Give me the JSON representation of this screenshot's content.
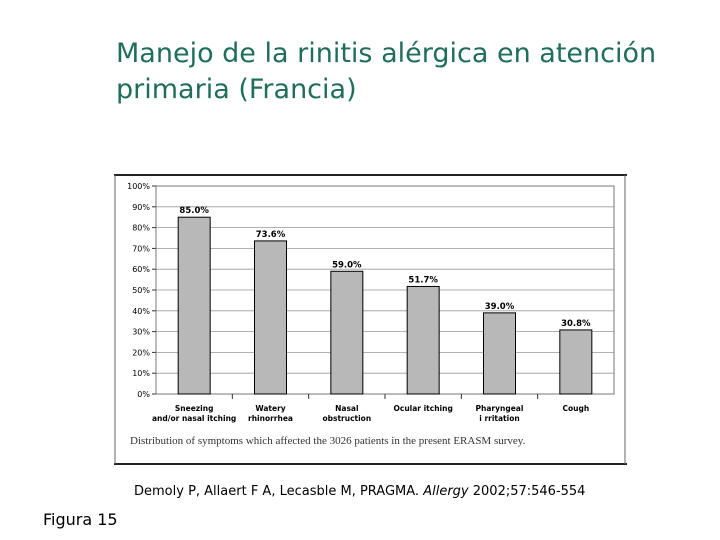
{
  "slide": {
    "title_line1": "Manejo de la rinitis alérgica en atención",
    "title_line2": "primaria (Francia)",
    "figure_label": "Figura 15"
  },
  "citation": {
    "authors": "Demoly P, Allaert F A, Lecasble M, PRAGMA.",
    "journal": "Allergy",
    "details": "2002;57:546-554"
  },
  "colors": {
    "title": "#1f6e5a",
    "bar_fill": "#b8b8b8",
    "bar_stroke": "#000000"
  },
  "chart_data": {
    "type": "bar",
    "categories": [
      [
        "Sneezing",
        "and/or nasal itching"
      ],
      [
        "Watery",
        "rhinorrhea"
      ],
      [
        "Nasal",
        "obstruction"
      ],
      [
        "Ocular itching"
      ],
      [
        "Pharyngeal",
        "i rritation"
      ],
      [
        "Cough"
      ]
    ],
    "values": [
      85.0,
      73.6,
      59.0,
      51.7,
      39.0,
      30.8
    ],
    "data_labels": [
      "85.0%",
      "73.6%",
      "59.0%",
      "51.7%",
      "39.0%",
      "30.8%"
    ],
    "yticks": [
      "0%",
      "10%",
      "20%",
      "30%",
      "40%",
      "50%",
      "60%",
      "70%",
      "80%",
      "90%",
      "100%"
    ],
    "ylim": [
      0,
      100
    ],
    "grid": true,
    "caption": "Distribution of symptoms which affected the 3026 patients in the present ERASM survey."
  }
}
